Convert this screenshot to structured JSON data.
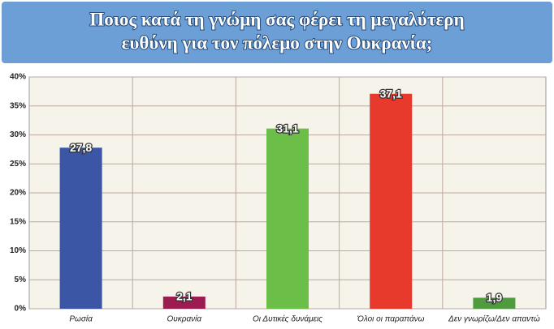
{
  "chart_data": {
    "type": "bar",
    "title": [
      "Ποιος κατά τη γνώμη σας φέρει τη μεγαλύτερη",
      "ευθύνη για τον πόλεμο στην Ουκρανία;"
    ],
    "categories": [
      "Ρωσία",
      "Ουκρανία",
      "Οι Δυτικές δυνάμεις",
      "Όλοι οι παραπάνω",
      "Δεν γνωρίζω/Δεν απαντώ"
    ],
    "values": [
      27.8,
      2.1,
      31.1,
      37.1,
      1.9
    ],
    "value_labels": [
      "27,8",
      "2,1",
      "31,1",
      "37,1",
      "1,9"
    ],
    "colors": [
      "#3b56a5",
      "#9c1b50",
      "#6bbf48",
      "#e73a2c",
      "#4f9b3e"
    ],
    "ylim": [
      0,
      40
    ],
    "yticks": [
      {
        "value": 0,
        "label": "0%"
      },
      {
        "value": 5,
        "label": "5%"
      },
      {
        "value": 10,
        "label": "10%"
      },
      {
        "value": 15,
        "label": "15%"
      },
      {
        "value": 20,
        "label": "20%"
      },
      {
        "value": 25,
        "label": "25%"
      },
      {
        "value": 30,
        "label": "30%"
      },
      {
        "value": 35,
        "label": "35%"
      },
      {
        "value": 40,
        "label": "40%"
      }
    ],
    "grid": true
  }
}
